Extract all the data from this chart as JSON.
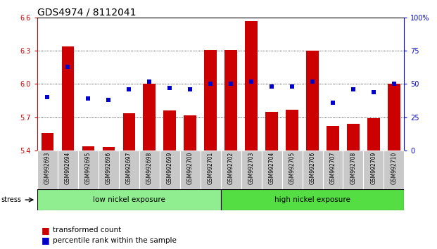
{
  "title": "GDS4974 / 8112041",
  "samples": [
    "GSM992693",
    "GSM992694",
    "GSM992695",
    "GSM992696",
    "GSM992697",
    "GSM992698",
    "GSM992699",
    "GSM992700",
    "GSM992701",
    "GSM992702",
    "GSM992703",
    "GSM992704",
    "GSM992705",
    "GSM992706",
    "GSM992707",
    "GSM992708",
    "GSM992709",
    "GSM992710"
  ],
  "bar_values": [
    5.56,
    6.34,
    5.44,
    5.43,
    5.74,
    6.0,
    5.76,
    5.72,
    6.31,
    6.31,
    6.57,
    5.75,
    5.77,
    6.3,
    5.62,
    5.64,
    5.69,
    6.0
  ],
  "percentile_values": [
    40,
    63,
    39,
    38,
    46,
    52,
    47,
    46,
    50,
    50,
    52,
    48,
    48,
    52,
    36,
    46,
    44,
    50
  ],
  "bar_color": "#cc0000",
  "percentile_color": "#0000cc",
  "ylim_left": [
    5.4,
    6.6
  ],
  "ylim_right": [
    0,
    100
  ],
  "yticks_left": [
    5.4,
    5.7,
    6.0,
    6.3,
    6.6
  ],
  "yticks_right": [
    0,
    25,
    50,
    75,
    100
  ],
  "grid_lines": [
    5.7,
    6.0,
    6.3
  ],
  "group1_label": "low nickel exposure",
  "group2_label": "high nickel exposure",
  "stress_label": "stress",
  "legend_bar_label": "transformed count",
  "legend_pct_label": "percentile rank within the sample",
  "group_bg1": "#90ee90",
  "group_bg2": "#55dd44",
  "title_fontsize": 10,
  "tick_fontsize": 7,
  "legend_fontsize": 7.5
}
